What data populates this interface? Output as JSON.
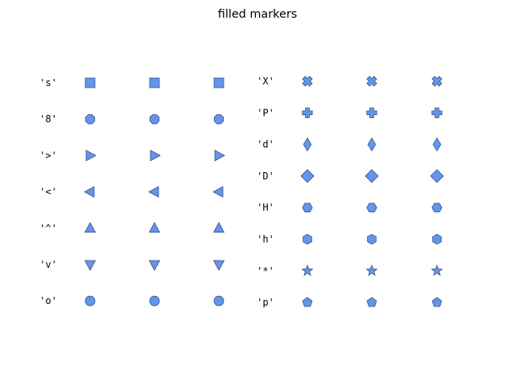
{
  "chart_data": {
    "type": "scatter",
    "title": "filled markers",
    "marker_color": "#6495ED",
    "edge_color": "#3b5280",
    "grid": false,
    "axes_visible": false,
    "columns_per_marker": 3,
    "panels": [
      {
        "name": "",
        "markers": [
          {
            "label": "'s'",
            "symbol": "s"
          },
          {
            "label": "'8'",
            "symbol": "8"
          },
          {
            "label": "'>'",
            "symbol": ">"
          },
          {
            "label": "'<'",
            "symbol": "<"
          },
          {
            "label": "'^'",
            "symbol": "^"
          },
          {
            "label": "'v'",
            "symbol": "v"
          },
          {
            "label": "'o'",
            "symbol": "o"
          }
        ]
      },
      {
        "name": "",
        "markers": [
          {
            "label": "'X'",
            "symbol": "X"
          },
          {
            "label": "'P'",
            "symbol": "P"
          },
          {
            "label": "'d'",
            "symbol": "d"
          },
          {
            "label": "'D'",
            "symbol": "D"
          },
          {
            "label": "'H'",
            "symbol": "H"
          },
          {
            "label": "'h'",
            "symbol": "h"
          },
          {
            "label": "'*'",
            "symbol": "*"
          },
          {
            "label": "'p'",
            "symbol": "p"
          }
        ]
      }
    ]
  }
}
